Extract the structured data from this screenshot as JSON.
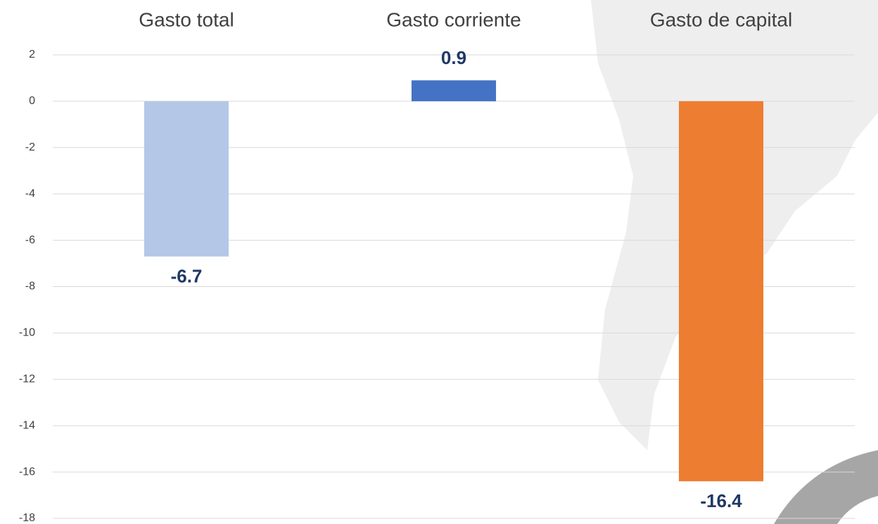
{
  "chart_data": {
    "type": "bar",
    "categories": [
      "Gasto total",
      "Gasto corriente",
      "Gasto de capital"
    ],
    "values": [
      -6.7,
      0.9,
      -16.4
    ],
    "colors": [
      "#b4c7e7",
      "#4472c4",
      "#ed7d31"
    ],
    "ylim": [
      -18,
      2
    ],
    "yticks": [
      2,
      0,
      -2,
      -4,
      -6,
      -8,
      -10,
      -12,
      -14,
      -16,
      -18
    ],
    "grid": true
  }
}
